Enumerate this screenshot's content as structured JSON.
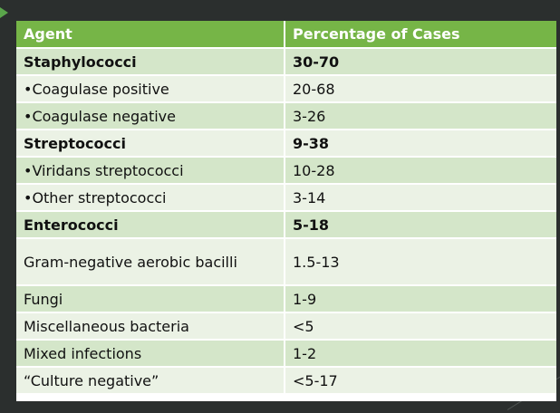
{
  "table": {
    "headers": [
      "Agent",
      "Percentage of Cases"
    ],
    "rows": [
      {
        "agent": "Staphylococci",
        "pct": "30-70",
        "bold": true
      },
      {
        "agent": "•Coagulase positive",
        "pct": "20-68",
        "bold": false
      },
      {
        "agent": "•Coagulase negative",
        "pct": "3-26",
        "bold": false
      },
      {
        "agent": "Streptococci",
        "pct": "9-38",
        "bold": true
      },
      {
        "agent": "•Viridans streptococci",
        "pct": "10-28",
        "bold": false
      },
      {
        "agent": "•Other streptococci",
        "pct": "3-14",
        "bold": false
      },
      {
        "agent": "Enterococci",
        "pct": "5-18",
        "bold": true
      },
      {
        "agent": "Gram-negative aerobic bacilli",
        "pct": "1.5-13",
        "bold": false
      },
      {
        "agent": "Fungi",
        "pct": "1-9",
        "bold": false
      },
      {
        "agent": "Miscellaneous bacteria",
        "pct": "<5",
        "bold": false
      },
      {
        "agent": "Mixed infections",
        "pct": "1-2",
        "bold": false
      },
      {
        "agent": "“Culture negative”",
        "pct": "<5-17",
        "bold": false
      }
    ]
  },
  "colors": {
    "header": "#76b547",
    "row_dark": "#d4e6c9",
    "row_light": "#ebf2e5",
    "background": "#2b2f2e"
  }
}
